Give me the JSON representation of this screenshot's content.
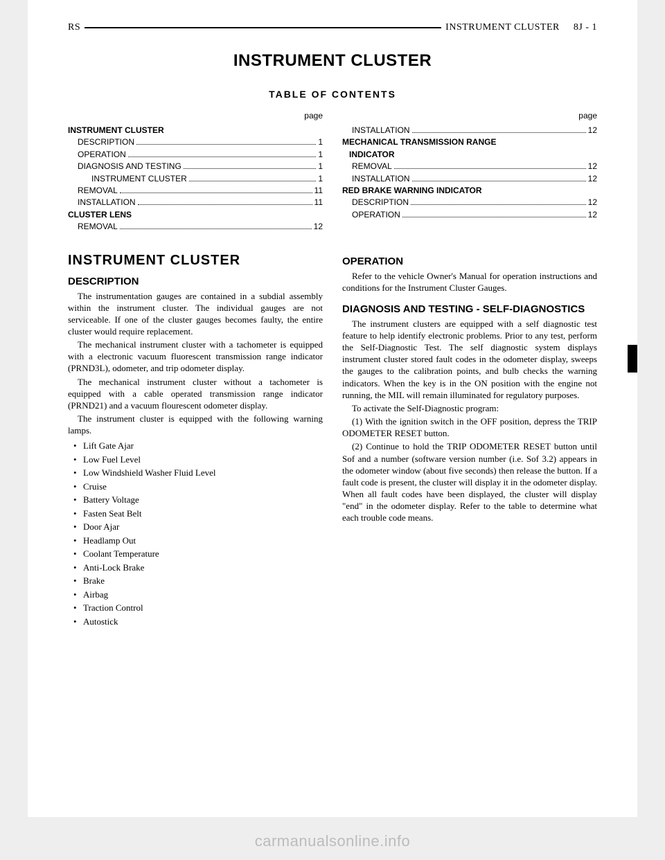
{
  "header": {
    "left": "RS",
    "right_label": "INSTRUMENT CLUSTER",
    "right_page": "8J - 1"
  },
  "title": "INSTRUMENT CLUSTER",
  "toc_label": "TABLE OF CONTENTS",
  "page_word": "page",
  "toc_left": [
    {
      "level": 1,
      "label": "INSTRUMENT CLUSTER",
      "page": ""
    },
    {
      "level": 2,
      "label": "DESCRIPTION",
      "page": "1"
    },
    {
      "level": 2,
      "label": "OPERATION",
      "page": "1"
    },
    {
      "level": 2,
      "label": "DIAGNOSIS AND TESTING",
      "page": "1"
    },
    {
      "level": 3,
      "label": "INSTRUMENT CLUSTER",
      "page": "1"
    },
    {
      "level": 2,
      "label": "REMOVAL",
      "page": "11"
    },
    {
      "level": 2,
      "label": "INSTALLATION",
      "page": "11"
    },
    {
      "level": 1,
      "label": "CLUSTER LENS",
      "page": ""
    },
    {
      "level": 2,
      "label": "REMOVAL",
      "page": "12"
    }
  ],
  "toc_right": [
    {
      "level": 2,
      "label": "INSTALLATION",
      "page": "12"
    },
    {
      "level": 1,
      "label": "MECHANICAL TRANSMISSION RANGE",
      "page": ""
    },
    {
      "level": 1,
      "label": "INDICATOR",
      "page": "",
      "indent": true
    },
    {
      "level": 2,
      "label": "REMOVAL",
      "page": "12"
    },
    {
      "level": 2,
      "label": "INSTALLATION",
      "page": "12"
    },
    {
      "level": 1,
      "label": "RED BRAKE WARNING INDICATOR",
      "page": ""
    },
    {
      "level": 2,
      "label": "DESCRIPTION",
      "page": "12"
    },
    {
      "level": 2,
      "label": "OPERATION",
      "page": "12"
    }
  ],
  "leftcol": {
    "h_sec": "INSTRUMENT CLUSTER",
    "h_desc": "DESCRIPTION",
    "p1": "The instrumentation gauges are contained in a subdial assembly within the instrument cluster. The individual gauges are not serviceable. If one of the cluster gauges becomes faulty, the entire cluster would require replacement.",
    "p2": "The mechanical instrument cluster with a tachometer is equipped with a electronic vacuum fluorescent transmission range indicator (PRND3L), odometer, and trip odometer display.",
    "p3": "The mechanical instrument cluster without a tachometer is equipped with a cable operated transmission range indicator (PRND21) and a vacuum flourescent odometer display.",
    "p4": "The instrument cluster is equipped with the following warning lamps.",
    "bullets": [
      "Lift Gate Ajar",
      "Low Fuel Level",
      "Low Windshield Washer Fluid Level",
      "Cruise",
      "Battery Voltage",
      "Fasten Seat Belt",
      "Door Ajar",
      "Headlamp Out",
      "Coolant Temperature",
      "Anti-Lock Brake",
      "Brake",
      "Airbag",
      "Traction Control",
      "Autostick"
    ]
  },
  "rightcol": {
    "h_op": "OPERATION",
    "p_op": "Refer to the vehicle Owner's Manual for operation instructions and conditions for the Instrument Cluster Gauges.",
    "h_diag": "DIAGNOSIS AND TESTING - SELF-DIAGNOSTICS",
    "p_d1": "The instrument clusters are equipped with a self diagnostic test feature to help identify electronic problems. Prior to any test, perform the Self-Diagnostic Test. The self diagnostic system displays instrument cluster stored fault codes in the odometer display, sweeps the gauges to the calibration points, and bulb checks the warning indicators. When the key is in the ON position with the engine not running, the MIL will remain illuminated for regulatory purposes.",
    "p_d2": "To activate the Self-Diagnostic program:",
    "p_d3": "(1) With the ignition switch in the OFF position, depress the TRIP ODOMETER RESET button.",
    "p_d4": "(2) Continue to hold the TRIP ODOMETER RESET button until Sof and a number (software version number (i.e. Sof 3.2) appears in the odometer window (about five seconds) then release the button. If a fault code is present, the cluster will display it in the odometer display. When all fault codes have been displayed, the cluster will display \"end\" in the odometer display. Refer to the table to determine what each trouble code means."
  },
  "watermark": "carmanualsonline.info"
}
